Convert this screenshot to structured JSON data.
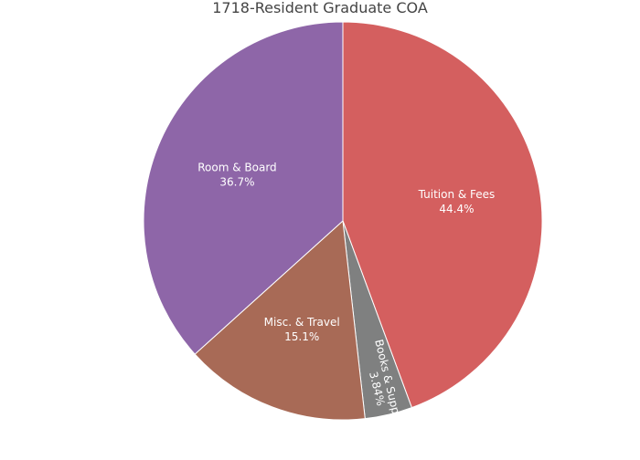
{
  "chart_data": {
    "type": "pie",
    "title": "1718-Resident Graduate COA",
    "start_angle_deg": 0,
    "direction": "clockwise",
    "slices": [
      {
        "label": "Tuition & Fees",
        "value": 44.4,
        "percent_text": "44.4%",
        "color": "#d45f5f",
        "label_orientation": "horizontal"
      },
      {
        "label": "Books & Supplies",
        "value": 3.84,
        "percent_text": "3.84%",
        "color": "#7f8080",
        "label_orientation": "radial"
      },
      {
        "label": "Misc. & Travel",
        "value": 15.1,
        "percent_text": "15.1%",
        "color": "#a86a56",
        "label_orientation": "horizontal"
      },
      {
        "label": "Room & Board",
        "value": 36.7,
        "percent_text": "36.7%",
        "color": "#8e66a8",
        "label_orientation": "horizontal"
      }
    ]
  }
}
